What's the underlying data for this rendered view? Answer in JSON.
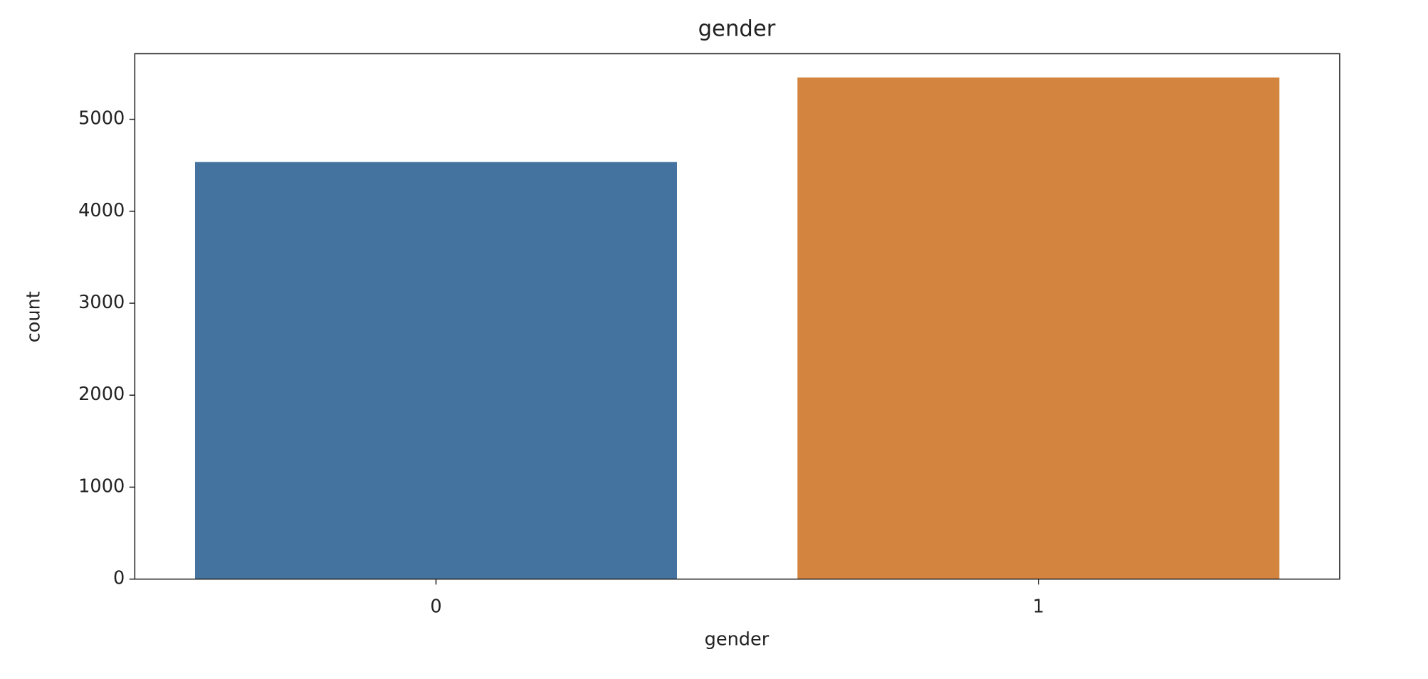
{
  "chart_data": {
    "type": "bar",
    "title": "gender",
    "x_label": "gender",
    "y_label": "count",
    "categories": [
      "0",
      "1"
    ],
    "values": [
      4535,
      5455
    ],
    "colors": [
      "#4573a0",
      "#d3843f"
    ],
    "ylim": [
      0,
      5713
    ],
    "yticks": [
      0,
      1000,
      2000,
      3000,
      4000,
      5000
    ],
    "grid": false
  }
}
